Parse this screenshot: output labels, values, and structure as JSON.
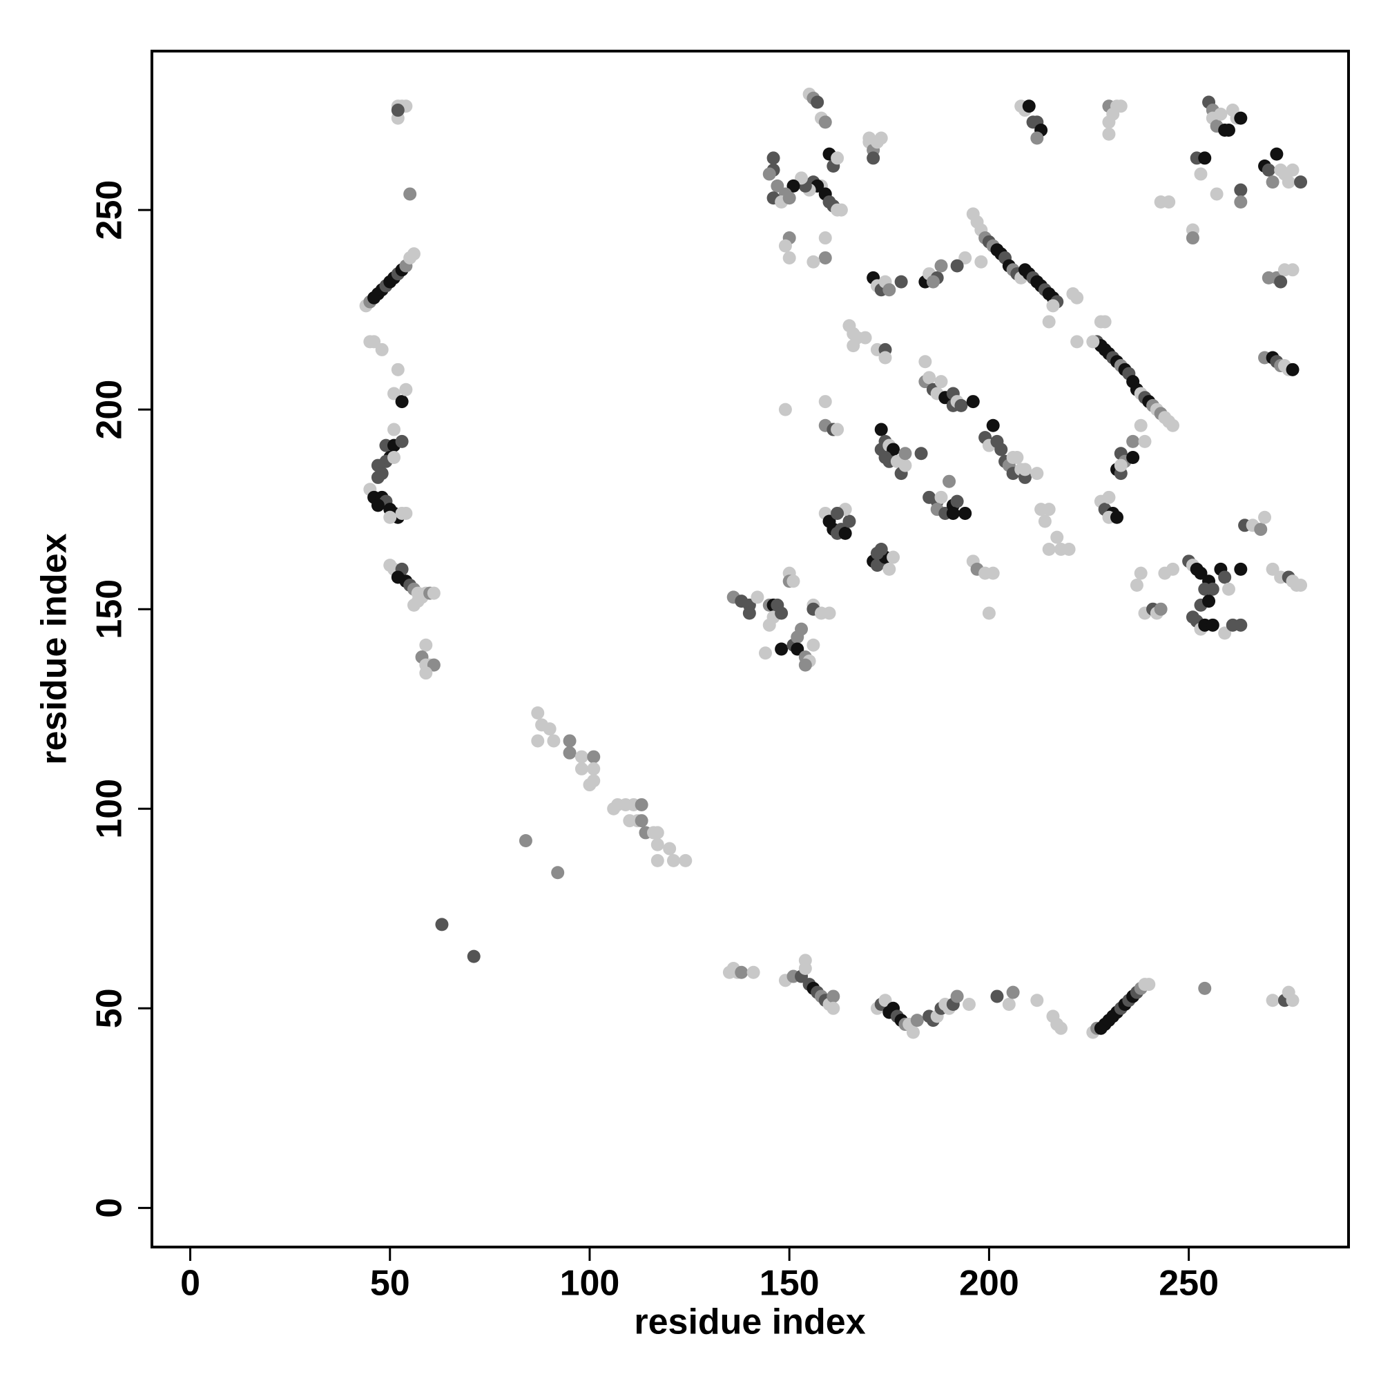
{
  "chart_data": {
    "type": "scatter",
    "x_label": "residue index",
    "y_label": "residue index",
    "xlim": [
      -9.6,
      290
    ],
    "ylim": [
      -9.8,
      289.8
    ],
    "xticks": [
      0,
      50,
      100,
      150,
      200,
      250
    ],
    "yticks": [
      0,
      50,
      100,
      150,
      200,
      250
    ],
    "grid": false,
    "x": [
      44,
      45,
      46,
      47,
      48,
      49,
      50,
      51,
      52,
      53,
      54,
      55,
      56,
      52,
      53,
      54,
      52,
      52,
      55,
      45,
      46,
      48,
      52,
      51,
      53,
      54,
      51,
      49,
      51,
      53,
      50,
      49,
      51,
      47,
      48,
      47,
      45,
      46,
      48,
      49,
      50,
      51,
      52,
      50,
      53,
      54,
      47,
      50,
      51,
      53,
      52,
      54,
      55,
      56,
      57,
      58,
      59,
      60,
      61,
      56,
      57,
      59,
      58,
      59,
      60,
      61,
      59,
      87,
      88,
      90,
      87,
      91,
      95,
      95,
      98,
      101,
      98,
      101,
      101,
      100,
      106,
      107,
      109,
      111,
      113,
      110,
      112,
      113,
      114,
      116,
      117,
      117,
      120,
      117,
      121,
      124,
      84,
      92,
      63,
      71,
      135,
      136,
      137,
      138,
      141,
      149,
      151,
      153,
      154,
      154,
      155,
      156,
      157,
      158,
      159,
      160,
      161,
      161,
      172,
      173,
      174,
      175,
      176,
      177,
      178,
      179,
      180,
      181,
      182,
      185,
      186,
      187,
      188,
      189,
      190,
      191,
      192,
      195,
      202,
      205,
      206,
      212,
      216,
      217,
      218,
      226,
      227,
      228,
      229,
      230,
      231,
      232,
      233,
      234,
      235,
      236,
      237,
      238,
      239,
      240,
      254,
      271,
      274,
      275,
      276,
      136,
      138,
      140,
      140,
      142,
      145,
      146,
      145,
      146,
      147,
      148,
      150,
      150,
      151,
      144,
      148,
      151,
      152,
      153,
      152,
      154,
      155,
      156,
      154,
      156,
      156,
      158,
      160,
      159,
      160,
      161,
      162,
      163,
      164,
      165,
      164,
      162,
      171,
      172,
      173,
      174,
      175,
      176,
      172,
      173,
      173,
      174,
      173,
      175,
      176,
      174,
      175,
      177,
      178,
      179,
      179,
      183,
      185,
      187,
      188,
      187,
      189,
      190,
      191,
      192,
      194,
      191,
      184,
      184,
      185,
      186,
      187,
      188,
      189,
      191,
      191,
      192,
      193,
      196,
      149,
      159,
      159,
      161,
      162,
      165,
      166,
      167,
      169,
      166,
      172,
      174,
      174,
      199,
      200,
      201,
      202,
      203,
      204,
      205,
      206,
      207,
      206,
      208,
      209,
      209,
      212,
      213,
      215,
      214,
      215,
      217,
      218,
      220,
      196,
      197,
      199,
      201,
      200,
      196,
      197,
      198,
      199,
      200,
      201,
      202,
      203,
      204,
      205,
      206,
      207,
      208,
      209,
      210,
      211,
      212,
      213,
      214,
      215,
      216,
      217,
      216,
      221,
      222,
      215,
      198,
      194,
      192,
      171,
      172,
      173,
      174,
      175,
      178,
      184,
      185,
      187,
      188,
      186,
      227,
      228,
      229,
      230,
      231,
      232,
      233,
      234,
      235,
      236,
      237,
      238,
      239,
      240,
      241,
      242,
      243,
      244,
      245,
      246,
      228,
      229,
      222,
      226,
      236,
      238,
      239,
      233,
      234,
      236,
      232,
      233,
      233,
      228,
      229,
      231,
      230,
      232,
      230,
      237,
      238,
      239,
      241,
      242,
      243,
      244,
      246,
      250,
      251,
      252,
      253,
      255,
      254,
      256,
      253,
      255,
      251,
      252,
      253,
      254,
      256,
      258,
      259,
      260,
      263,
      259,
      261,
      263,
      264,
      266,
      268,
      269,
      271,
      273,
      275,
      276,
      277,
      278,
      269,
      271,
      272,
      273,
      274,
      275,
      276,
      270,
      272,
      274,
      276,
      273,
      255,
      256,
      256,
      257,
      258,
      259,
      260,
      261,
      262,
      263,
      252,
      254,
      253,
      257,
      263,
      263,
      269,
      270,
      272,
      273,
      274,
      275,
      276,
      278,
      271,
      243,
      245,
      251,
      251,
      230,
      231,
      230,
      230,
      232,
      233,
      208,
      209,
      210,
      211,
      212,
      213,
      212,
      155,
      156,
      157,
      158,
      159,
      160,
      161,
      162,
      158,
      159,
      160,
      161,
      162,
      163,
      156,
      157,
      155,
      154,
      153,
      151,
      149,
      147,
      146,
      148,
      150,
      146,
      145,
      146,
      150,
      149,
      150,
      159,
      159,
      156,
      170,
      171,
      172,
      173,
      171,
      170
    ],
    "values": [
      226,
      227,
      228,
      229,
      230,
      231,
      232,
      233,
      234,
      235,
      236,
      238,
      239,
      276,
      276,
      276,
      273,
      275,
      254,
      217,
      217,
      215,
      210,
      204,
      202,
      205,
      195,
      191,
      191,
      192,
      188,
      187,
      188,
      186,
      184,
      183,
      180,
      178,
      178,
      177,
      175,
      174,
      173,
      173,
      174,
      174,
      176,
      161,
      160,
      160,
      158,
      157,
      156,
      155,
      154,
      153,
      154,
      154,
      154,
      151,
      152,
      141,
      138,
      136,
      136,
      136,
      134,
      124,
      121,
      120,
      117,
      117,
      117,
      114,
      113,
      113,
      110,
      110,
      107,
      106,
      100,
      101,
      101,
      101,
      101,
      97,
      97,
      97,
      94,
      94,
      94,
      91,
      90,
      87,
      87,
      87,
      92,
      84,
      71,
      63,
      59,
      60,
      59,
      59,
      59,
      57,
      58,
      58,
      60,
      62,
      56,
      55,
      54,
      53,
      52,
      51,
      53,
      50,
      50,
      51,
      52,
      49,
      50,
      48,
      47,
      46,
      46,
      44,
      47,
      48,
      47,
      48,
      50,
      51,
      50,
      51,
      53,
      51,
      53,
      51,
      54,
      52,
      48,
      46,
      45,
      44,
      45,
      45,
      46,
      47,
      48,
      49,
      50,
      51,
      52,
      53,
      54,
      55,
      56,
      56,
      55,
      52,
      52,
      54,
      52,
      153,
      152,
      151,
      149,
      153,
      151,
      151,
      146,
      148,
      151,
      149,
      159,
      157,
      157,
      139,
      140,
      141,
      143,
      145,
      140,
      138,
      137,
      141,
      136,
      151,
      150,
      149,
      149,
      174,
      172,
      170,
      169,
      170,
      169,
      172,
      175,
      174,
      162,
      161,
      162,
      163,
      160,
      163,
      164,
      165,
      195,
      192,
      190,
      191,
      190,
      188,
      187,
      187,
      184,
      186,
      189,
      189,
      178,
      177,
      178,
      175,
      174,
      182,
      176,
      177,
      174,
      174,
      212,
      207,
      208,
      205,
      204,
      207,
      203,
      204,
      201,
      202,
      201,
      202,
      200,
      202,
      196,
      195,
      195,
      221,
      219,
      218,
      218,
      216,
      215,
      215,
      213,
      193,
      191,
      196,
      192,
      190,
      187,
      186,
      188,
      188,
      184,
      185,
      183,
      185,
      184,
      175,
      175,
      172,
      165,
      168,
      165,
      165,
      162,
      160,
      159,
      159,
      149,
      249,
      247,
      245,
      243,
      242,
      241,
      240,
      239,
      238,
      236,
      235,
      234,
      233,
      235,
      234,
      233,
      232,
      231,
      230,
      229,
      228,
      227,
      226,
      229,
      228,
      222,
      237,
      238,
      236,
      233,
      231,
      230,
      232,
      230,
      232,
      232,
      234,
      233,
      236,
      232,
      217,
      216,
      215,
      214,
      213,
      212,
      211,
      210,
      209,
      207,
      205,
      204,
      203,
      202,
      201,
      200,
      199,
      198,
      197,
      196,
      222,
      222,
      217,
      217,
      192,
      196,
      192,
      189,
      187,
      188,
      185,
      184,
      186,
      177,
      175,
      174,
      173,
      173,
      178,
      156,
      159,
      149,
      150,
      149,
      150,
      159,
      160,
      162,
      161,
      160,
      159,
      157,
      155,
      155,
      151,
      152,
      148,
      147,
      145,
      146,
      146,
      160,
      158,
      155,
      160,
      144,
      146,
      146,
      171,
      171,
      170,
      173,
      160,
      158,
      158,
      157,
      156,
      156,
      213,
      213,
      212,
      211,
      211,
      210,
      210,
      233,
      233,
      235,
      235,
      232,
      277,
      275,
      273,
      271,
      274,
      270,
      270,
      275,
      273,
      273,
      263,
      263,
      259,
      254,
      255,
      252,
      261,
      260,
      264,
      260,
      259,
      257,
      260,
      257,
      257,
      252,
      252,
      245,
      243,
      276,
      274,
      272,
      269,
      276,
      276,
      276,
      275,
      276,
      272,
      272,
      270,
      268,
      279,
      278,
      277,
      273,
      272,
      264,
      261,
      263,
      256,
      254,
      252,
      251,
      250,
      250,
      257,
      256,
      255,
      256,
      258,
      256,
      254,
      256,
      253,
      252,
      253,
      260,
      259,
      263,
      243,
      241,
      238,
      243,
      238,
      237,
      267,
      265,
      267,
      268,
      263,
      268
    ],
    "colors": [
      "#c8c8c8",
      "#8c8c8c",
      "#111111",
      "#111111",
      "#111111",
      "#555555",
      "#111111",
      "#111111",
      "#555555",
      "#111111",
      "#8c8c8c",
      "#c8c8c8",
      "#c8c8c8",
      "#c8c8c8",
      "#c8c8c8",
      "#c8c8c8",
      "#c8c8c8",
      "#555555",
      "#8c8c8c",
      "#c8c8c8",
      "#c8c8c8",
      "#c8c8c8",
      "#c8c8c8",
      "#c8c8c8",
      "#111111",
      "#c8c8c8",
      "#c8c8c8",
      "#555555",
      "#111111",
      "#555555",
      "#111111",
      "#555555",
      "#c8c8c8",
      "#555555",
      "#555555",
      "#555555",
      "#c8c8c8",
      "#111111",
      "#111111",
      "#555555",
      "#111111",
      "#111111",
      "#111111",
      "#c8c8c8",
      "#c8c8c8",
      "#c8c8c8",
      "#111111",
      "#c8c8c8",
      "#c8c8c8",
      "#555555",
      "#111111",
      "#111111",
      "#555555",
      "#8c8c8c",
      "#c8c8c8",
      "#c8c8c8",
      "#c8c8c8",
      "#8c8c8c",
      "#c8c8c8",
      "#c8c8c8",
      "#c8c8c8",
      "#c8c8c8",
      "#8c8c8c",
      "#c8c8c8",
      "#c8c8c8",
      "#8c8c8c",
      "#c8c8c8",
      "#c8c8c8",
      "#c8c8c8",
      "#c8c8c8",
      "#c8c8c8",
      "#c8c8c8",
      "#8c8c8c",
      "#8c8c8c",
      "#c8c8c8",
      "#8c8c8c",
      "#c8c8c8",
      "#c8c8c8",
      "#c8c8c8",
      "#c8c8c8",
      "#c8c8c8",
      "#c8c8c8",
      "#c8c8c8",
      "#c8c8c8",
      "#8c8c8c",
      "#c8c8c8",
      "#c8c8c8",
      "#8c8c8c",
      "#8c8c8c",
      "#c8c8c8",
      "#c8c8c8",
      "#c8c8c8",
      "#c8c8c8",
      "#c8c8c8",
      "#c8c8c8",
      "#c8c8c8",
      "#8c8c8c",
      "#8c8c8c",
      "#555555",
      "#555555",
      "#c8c8c8",
      "#c8c8c8",
      "#c8c8c8",
      "#8c8c8c",
      "#c8c8c8",
      "#c8c8c8",
      "#8c8c8c",
      "#555555",
      "#c8c8c8",
      "#c8c8c8",
      "#555555",
      "#111111",
      "#555555",
      "#8c8c8c",
      "#555555",
      "#c8c8c8",
      "#8c8c8c",
      "#c8c8c8",
      "#c8c8c8",
      "#555555",
      "#c8c8c8",
      "#111111",
      "#111111",
      "#555555",
      "#111111",
      "#8c8c8c",
      "#c8c8c8",
      "#c8c8c8",
      "#8c8c8c",
      "#555555",
      "#555555",
      "#c8c8c8",
      "#555555",
      "#c8c8c8",
      "#c8c8c8",
      "#555555",
      "#8c8c8c",
      "#c8c8c8",
      "#555555",
      "#c8c8c8",
      "#8c8c8c",
      "#c8c8c8",
      "#c8c8c8",
      "#c8c8c8",
      "#c8c8c8",
      "#c8c8c8",
      "#8c8c8c",
      "#111111",
      "#111111",
      "#111111",
      "#111111",
      "#111111",
      "#555555",
      "#111111",
      "#555555",
      "#111111",
      "#555555",
      "#8c8c8c",
      "#c8c8c8",
      "#c8c8c8",
      "#8c8c8c",
      "#c8c8c8",
      "#555555",
      "#c8c8c8",
      "#c8c8c8",
      "#8c8c8c",
      "#555555",
      "#555555",
      "#555555",
      "#c8c8c8",
      "#8c8c8c",
      "#111111",
      "#c8c8c8",
      "#c8c8c8",
      "#555555",
      "#555555",
      "#c8c8c8",
      "#8c8c8c",
      "#c8c8c8",
      "#c8c8c8",
      "#111111",
      "#555555",
      "#8c8c8c",
      "#8c8c8c",
      "#111111",
      "#8c8c8c",
      "#c8c8c8",
      "#c8c8c8",
      "#8c8c8c",
      "#c8c8c8",
      "#555555",
      "#c8c8c8",
      "#c8c8c8",
      "#c8c8c8",
      "#111111",
      "#111111",
      "#555555",
      "#555555",
      "#111111",
      "#555555",
      "#c8c8c8",
      "#555555",
      "#111111",
      "#555555",
      "#555555",
      "#111111",
      "#c8c8c8",
      "#c8c8c8",
      "#555555",
      "#555555",
      "#111111",
      "#555555",
      "#555555",
      "#c8c8c8",
      "#111111",
      "#555555",
      "#555555",
      "#c8c8c8",
      "#555555",
      "#c8c8c8",
      "#8c8c8c",
      "#555555",
      "#555555",
      "#555555",
      "#c8c8c8",
      "#8c8c8c",
      "#555555",
      "#8c8c8c",
      "#111111",
      "#555555",
      "#111111",
      "#111111",
      "#c8c8c8",
      "#8c8c8c",
      "#c8c8c8",
      "#555555",
      "#c8c8c8",
      "#c8c8c8",
      "#111111",
      "#555555",
      "#555555",
      "#c8c8c8",
      "#555555",
      "#111111",
      "#c8c8c8",
      "#c8c8c8",
      "#8c8c8c",
      "#555555",
      "#c8c8c8",
      "#c8c8c8",
      "#c8c8c8",
      "#c8c8c8",
      "#c8c8c8",
      "#c8c8c8",
      "#c8c8c8",
      "#555555",
      "#c8c8c8",
      "#555555",
      "#c8c8c8",
      "#111111",
      "#555555",
      "#555555",
      "#555555",
      "#8c8c8c",
      "#c8c8c8",
      "#c8c8c8",
      "#555555",
      "#c8c8c8",
      "#555555",
      "#c8c8c8",
      "#c8c8c8",
      "#c8c8c8",
      "#c8c8c8",
      "#c8c8c8",
      "#c8c8c8",
      "#c8c8c8",
      "#c8c8c8",
      "#c8c8c8",
      "#c8c8c8",
      "#8c8c8c",
      "#c8c8c8",
      "#c8c8c8",
      "#c8c8c8",
      "#c8c8c8",
      "#c8c8c8",
      "#c8c8c8",
      "#8c8c8c",
      "#555555",
      "#8c8c8c",
      "#111111",
      "#111111",
      "#555555",
      "#111111",
      "#8c8c8c",
      "#555555",
      "#c8c8c8",
      "#111111",
      "#111111",
      "#555555",
      "#111111",
      "#111111",
      "#555555",
      "#111111",
      "#111111",
      "#555555",
      "#c8c8c8",
      "#c8c8c8",
      "#c8c8c8",
      "#c8c8c8",
      "#c8c8c8",
      "#c8c8c8",
      "#555555",
      "#111111",
      "#c8c8c8",
      "#555555",
      "#c8c8c8",
      "#8c8c8c",
      "#555555",
      "#111111",
      "#c8c8c8",
      "#555555",
      "#8c8c8c",
      "#8c8c8c",
      "#555555",
      "#111111",
      "#111111",
      "#111111",
      "#555555",
      "#111111",
      "#8c8c8c",
      "#111111",
      "#555555",
      "#111111",
      "#111111",
      "#c8c8c8",
      "#555555",
      "#111111",
      "#8c8c8c",
      "#c8c8c8",
      "#8c8c8c",
      "#c8c8c8",
      "#c8c8c8",
      "#c8c8c8",
      "#c8c8c8",
      "#c8c8c8",
      "#c8c8c8",
      "#c8c8c8",
      "#8c8c8c",
      "#c8c8c8",
      "#c8c8c8",
      "#555555",
      "#8c8c8c",
      "#111111",
      "#111111",
      "#555555",
      "#c8c8c8",
      "#c8c8c8",
      "#555555",
      "#111111",
      "#c8c8c8",
      "#111111",
      "#c8c8c8",
      "#c8c8c8",
      "#c8c8c8",
      "#c8c8c8",
      "#555555",
      "#c8c8c8",
      "#8c8c8c",
      "#c8c8c8",
      "#c8c8c8",
      "#555555",
      "#c8c8c8",
      "#111111",
      "#111111",
      "#111111",
      "#555555",
      "#555555",
      "#555555",
      "#111111",
      "#555555",
      "#555555",
      "#c8c8c8",
      "#111111",
      "#111111",
      "#111111",
      "#555555",
      "#c8c8c8",
      "#111111",
      "#c8c8c8",
      "#555555",
      "#555555",
      "#555555",
      "#c8c8c8",
      "#8c8c8c",
      "#c8c8c8",
      "#c8c8c8",
      "#c8c8c8",
      "#555555",
      "#c8c8c8",
      "#c8c8c8",
      "#c8c8c8",
      "#8c8c8c",
      "#111111",
      "#555555",
      "#8c8c8c",
      "#c8c8c8",
      "#c8c8c8",
      "#111111",
      "#8c8c8c",
      "#8c8c8c",
      "#c8c8c8",
      "#c8c8c8",
      "#555555",
      "#555555",
      "#8c8c8c",
      "#c8c8c8",
      "#8c8c8c",
      "#c8c8c8",
      "#111111",
      "#111111",
      "#c8c8c8",
      "#c8c8c8",
      "#111111",
      "#555555",
      "#111111",
      "#c8c8c8",
      "#c8c8c8",
      "#555555",
      "#8c8c8c",
      "#111111",
      "#555555",
      "#111111",
      "#c8c8c8",
      "#c8c8c8",
      "#c8c8c8",
      "#c8c8c8",
      "#555555",
      "#8c8c8c",
      "#c8c8c8",
      "#c8c8c8",
      "#c8c8c8",
      "#8c8c8c",
      "#8c8c8c",
      "#c8c8c8",
      "#c8c8c8",
      "#c8c8c8",
      "#c8c8c8",
      "#c8c8c8",
      "#c8c8c8",
      "#c8c8c8",
      "#111111",
      "#555555",
      "#555555",
      "#111111",
      "#8c8c8c",
      "#c8c8c8",
      "#8c8c8c",
      "#555555",
      "#c8c8c8",
      "#8c8c8c",
      "#111111",
      "#555555",
      "#c8c8c8",
      "#c8c8c8",
      "#111111",
      "#555555",
      "#555555",
      "#c8c8c8",
      "#c8c8c8",
      "#555555",
      "#111111",
      "#c8c8c8",
      "#555555",
      "#c8c8c8",
      "#111111",
      "#8c8c8c",
      "#8c8c8c",
      "#555555",
      "#c8c8c8",
      "#8c8c8c",
      "#555555",
      "#8c8c8c",
      "#555555",
      "#8c8c8c",
      "#c8c8c8",
      "#c8c8c8",
      "#c8c8c8",
      "#8c8c8c",
      "#c8c8c8",
      "#c8c8c8",
      "#8c8c8c",
      "#c8c8c8",
      "#c8c8c8",
      "#555555",
      "#c8c8c8"
    ]
  }
}
